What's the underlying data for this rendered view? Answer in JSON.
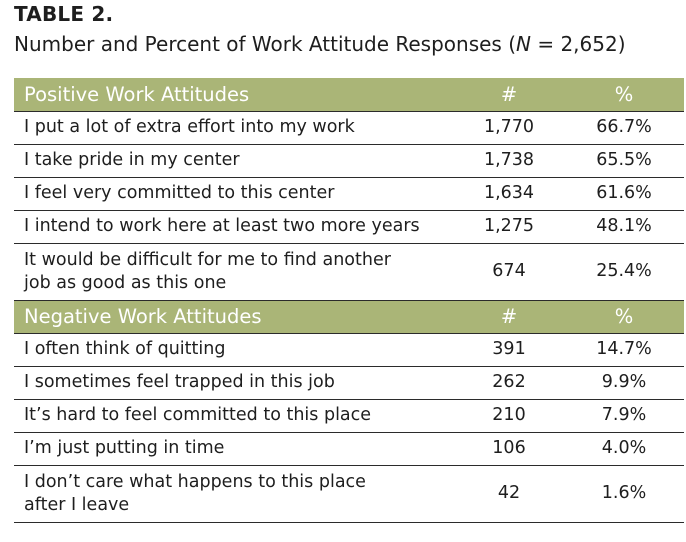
{
  "table_label": "TABLE 2.",
  "caption": {
    "prefix": "Number and Percent of Work Attitude Responses (",
    "n_symbol": "N",
    "suffix": " = 2,652)"
  },
  "sections": [
    {
      "heading": "Positive Work Attitudes",
      "count_header": "#",
      "percent_header": "%",
      "rows": [
        {
          "statement": "I put a lot of extra effort into my work",
          "count": "1,770",
          "percent": "66.7%"
        },
        {
          "statement": "I take pride in my center",
          "count": "1,738",
          "percent": "65.5%"
        },
        {
          "statement": "I feel very committed to this center",
          "count": "1,634",
          "percent": "61.6%"
        },
        {
          "statement": "I intend to work here at least two more years",
          "count": "1,275",
          "percent": "48.1%"
        },
        {
          "statement_line1": "It would be difficult for me to find another",
          "statement_line2": "job as good as this one",
          "count": "674",
          "percent": "25.4%"
        }
      ]
    },
    {
      "heading": "Negative Work Attitudes",
      "count_header": "#",
      "percent_header": "%",
      "rows": [
        {
          "statement": "I often think of quitting",
          "count": "391",
          "percent": "14.7%"
        },
        {
          "statement": "I sometimes feel trapped in this job",
          "count": "262",
          "percent": "9.9%"
        },
        {
          "statement": "It’s hard to feel committed to this place",
          "count": "210",
          "percent": "7.9%"
        },
        {
          "statement": "I’m just putting in time",
          "count": "106",
          "percent": "4.0%"
        },
        {
          "statement_line1": "I don’t care what happens to this place",
          "statement_line2": "after I leave",
          "count": "42",
          "percent": "1.6%"
        }
      ]
    }
  ],
  "colors": {
    "header_background": "#aab577",
    "header_text": "#ffffff",
    "rule": "#2b2b2b",
    "text": "#1e1e1e"
  }
}
